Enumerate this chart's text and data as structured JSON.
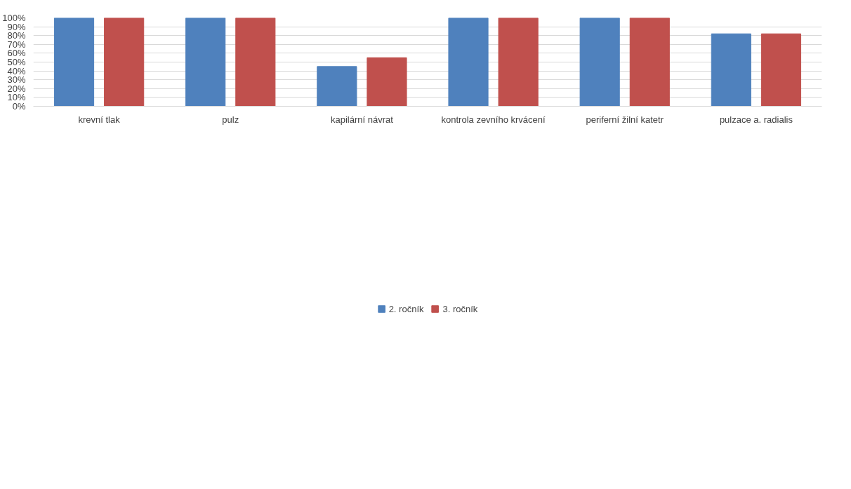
{
  "chart_data": {
    "type": "bar",
    "categories": [
      "krevní tlak",
      "pulz",
      "kapilární návrat",
      "kontrola zevního krvácení",
      "periferní žilní katetr",
      "pulzace a. radialis"
    ],
    "series": [
      {
        "name": "2. ročník",
        "color": "#4f81bd",
        "values": [
          100,
          100,
          45,
          100,
          100,
          82
        ]
      },
      {
        "name": "3. ročník",
        "color": "#c0504d",
        "values": [
          100,
          100,
          55,
          100,
          100,
          82
        ]
      }
    ],
    "ylim": [
      0,
      100
    ],
    "yticks": [
      {
        "value": 0,
        "label": "0%"
      },
      {
        "value": 10,
        "label": "10%"
      },
      {
        "value": 20,
        "label": "20%"
      },
      {
        "value": 30,
        "label": "30%"
      },
      {
        "value": 40,
        "label": "40%"
      },
      {
        "value": 50,
        "label": "50%"
      },
      {
        "value": 60,
        "label": "60%"
      },
      {
        "value": 70,
        "label": "70%"
      },
      {
        "value": 80,
        "label": "80%"
      },
      {
        "value": 90,
        "label": "90%"
      },
      {
        "value": 100,
        "label": "100%"
      }
    ],
    "grid": "y",
    "legend": "bottom"
  }
}
